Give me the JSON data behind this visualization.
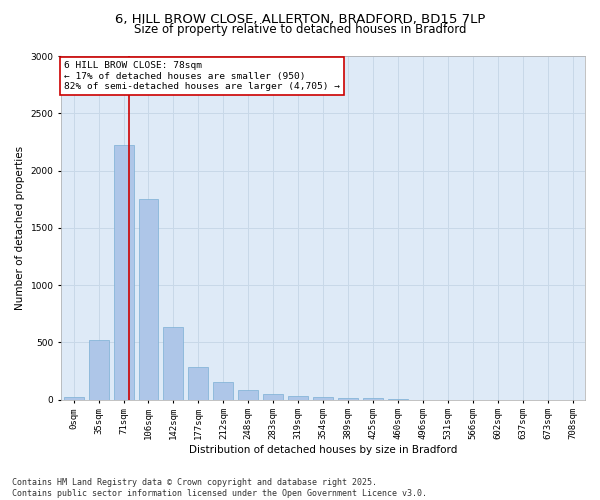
{
  "title_line1": "6, HILL BROW CLOSE, ALLERTON, BRADFORD, BD15 7LP",
  "title_line2": "Size of property relative to detached houses in Bradford",
  "xlabel": "Distribution of detached houses by size in Bradford",
  "ylabel": "Number of detached properties",
  "bar_color": "#aec6e8",
  "bar_edge_color": "#7bafd4",
  "grid_color": "#c8d8e8",
  "background_color": "#deeaf7",
  "fig_background_color": "#ffffff",
  "categories": [
    "0sqm",
    "35sqm",
    "71sqm",
    "106sqm",
    "142sqm",
    "177sqm",
    "212sqm",
    "248sqm",
    "283sqm",
    "319sqm",
    "354sqm",
    "389sqm",
    "425sqm",
    "460sqm",
    "496sqm",
    "531sqm",
    "566sqm",
    "602sqm",
    "637sqm",
    "673sqm",
    "708sqm"
  ],
  "values": [
    25,
    520,
    2220,
    1750,
    635,
    280,
    155,
    80,
    45,
    30,
    20,
    15,
    10,
    5,
    0,
    0,
    0,
    0,
    0,
    0,
    0
  ],
  "ylim": [
    0,
    3000
  ],
  "yticks": [
    0,
    500,
    1000,
    1500,
    2000,
    2500,
    3000
  ],
  "property_sqm": 78,
  "property_bin_index": 2,
  "vline_x": 2.2,
  "vline_color": "#cc0000",
  "annotation_text": "6 HILL BROW CLOSE: 78sqm\n← 17% of detached houses are smaller (950)\n82% of semi-detached houses are larger (4,705) →",
  "annotation_box_color": "#ffffff",
  "annotation_box_edge_color": "#cc0000",
  "footnote": "Contains HM Land Registry data © Crown copyright and database right 2025.\nContains public sector information licensed under the Open Government Licence v3.0.",
  "title_fontsize": 9.5,
  "subtitle_fontsize": 8.5,
  "axis_label_fontsize": 7.5,
  "tick_fontsize": 6.5,
  "annotation_fontsize": 6.8,
  "footnote_fontsize": 6
}
